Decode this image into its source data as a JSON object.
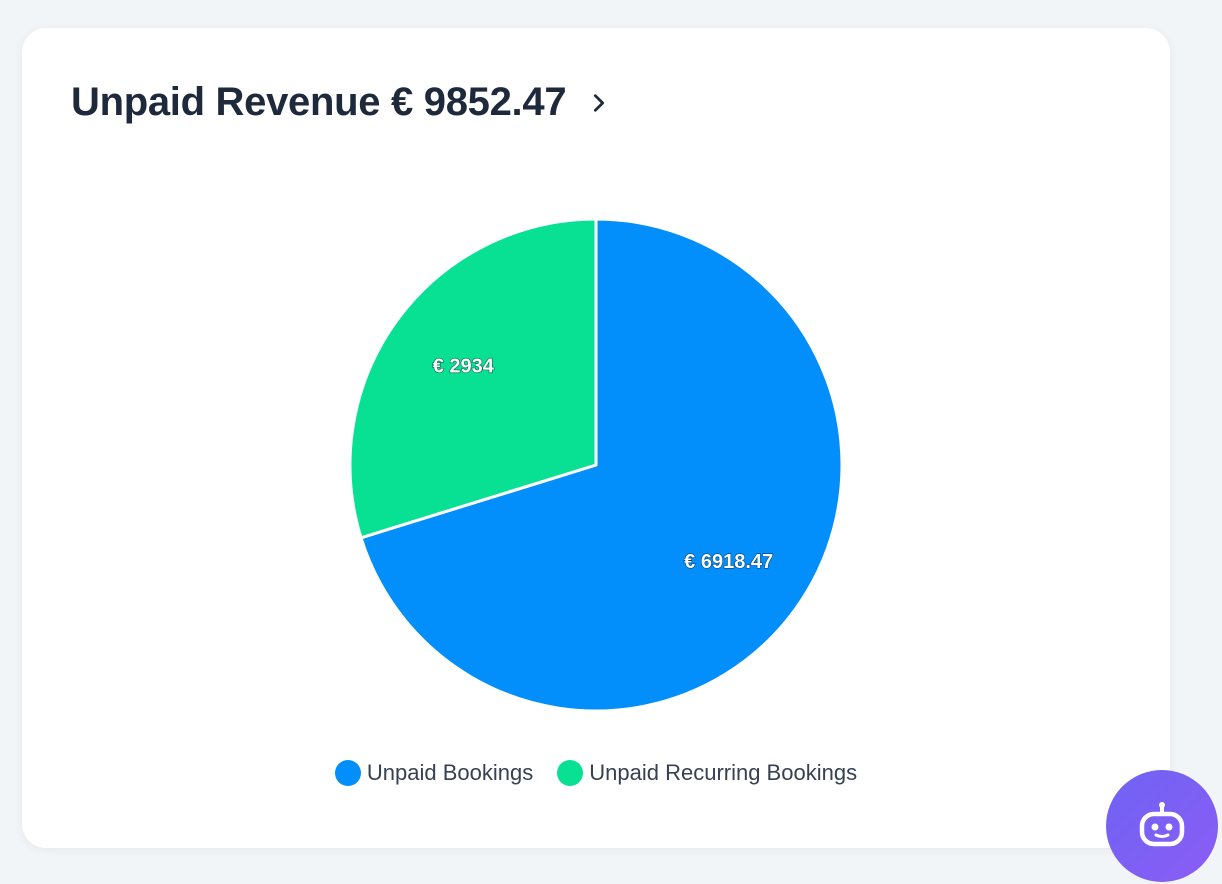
{
  "header": {
    "title": "Unpaid Revenue € 9852.47"
  },
  "colors": {
    "unpaid_bookings": "#038ffb",
    "unpaid_recurring_bookings": "#08e194",
    "title": "#1e293b",
    "assistant": "#7c5cf5"
  },
  "chart_data": {
    "type": "pie",
    "title": "Unpaid Revenue € 9852.47",
    "slices": [
      {
        "name": "Unpaid Bookings",
        "value": 6918.47,
        "label": "€ 6918.47",
        "color": "#038ffb"
      },
      {
        "name": "Unpaid Recurring Bookings",
        "value": 2934,
        "label": "€ 2934",
        "color": "#08e194"
      }
    ],
    "legend_position": "bottom-center"
  },
  "legend": {
    "items": [
      {
        "label": "Unpaid Bookings",
        "color": "#038ffb"
      },
      {
        "label": "Unpaid Recurring Bookings",
        "color": "#08e194"
      }
    ]
  },
  "icons": {
    "header_chevron": "chevron-right-icon",
    "assistant": "robot-icon"
  }
}
